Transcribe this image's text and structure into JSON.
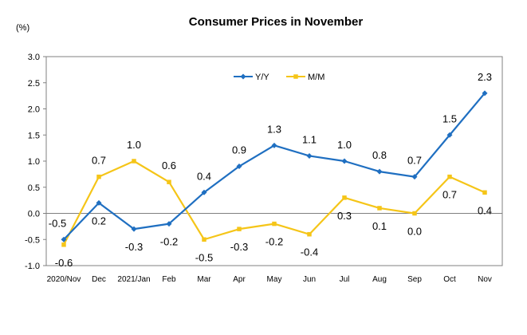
{
  "chart_data": {
    "type": "line",
    "title": "Consumer Prices in November",
    "unit_label": "(%)",
    "categories": [
      "2020/Nov",
      "Dec",
      "2021/Jan",
      "Feb",
      "Mar",
      "Apr",
      "May",
      "Jun",
      "Jul",
      "Aug",
      "Sep",
      "Oct",
      "Nov"
    ],
    "ylim": [
      -1.0,
      3.0
    ],
    "yticks": [
      "3.0",
      "2.5",
      "2.0",
      "1.5",
      "1.0",
      "0.5",
      "0.0",
      "-0.5",
      "-1.0"
    ],
    "ytick_values": [
      3.0,
      2.5,
      2.0,
      1.5,
      1.0,
      0.5,
      0.0,
      -0.5,
      -1.0
    ],
    "grid": false,
    "legend_position": "top-center",
    "series": [
      {
        "name": "Y/Y",
        "color": "#1f6fc1",
        "marker": "diamond",
        "values": [
          -0.5,
          0.2,
          -0.3,
          -0.2,
          0.4,
          0.9,
          1.3,
          1.1,
          1.0,
          0.8,
          0.7,
          1.5,
          2.3
        ],
        "labels": [
          "-0.5",
          "0.2",
          "-0.3",
          "-0.2",
          "0.4",
          "0.9",
          "1.3",
          "1.1",
          "1.0",
          "0.8",
          "0.7",
          "1.5",
          "2.3"
        ]
      },
      {
        "name": "M/M",
        "color": "#f5c518",
        "marker": "square",
        "values": [
          -0.6,
          0.7,
          1.0,
          0.6,
          -0.5,
          -0.3,
          -0.2,
          -0.4,
          0.3,
          0.1,
          0.0,
          0.7,
          0.4
        ],
        "labels": [
          "-0.6",
          "0.7",
          "1.0",
          "0.6",
          "-0.5",
          "-0.3",
          "-0.2",
          "-0.4",
          "0.3",
          "0.1",
          "0.0",
          "0.7",
          "0.4"
        ]
      }
    ]
  }
}
